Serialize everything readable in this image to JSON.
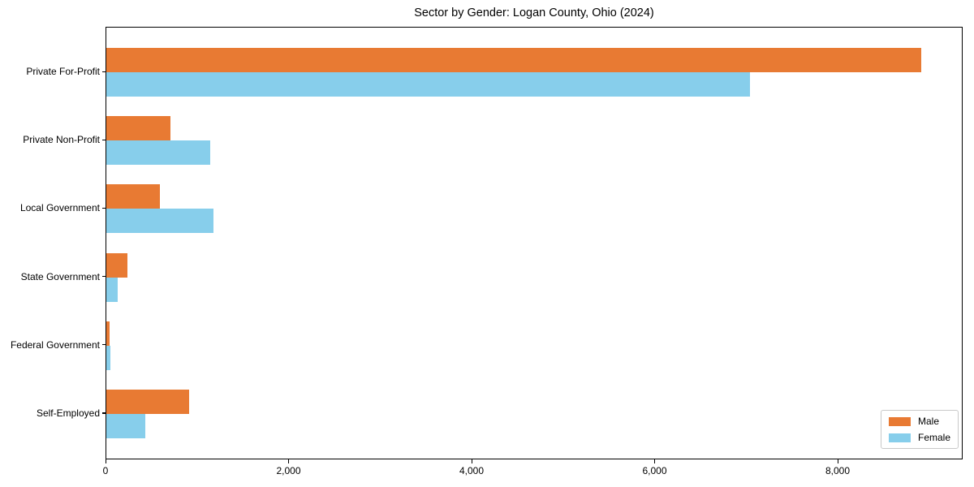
{
  "title": "Sector by Gender: Logan County, Ohio (2024)",
  "chart_data": {
    "type": "bar",
    "orientation": "horizontal",
    "title": "Sector by Gender: Logan County, Ohio (2024)",
    "categories": [
      "Private For-Profit",
      "Private Non-Profit",
      "Local Government",
      "State Government",
      "Federal Government",
      "Self-Employed"
    ],
    "series": [
      {
        "name": "Male",
        "color": "#e87a33",
        "values": [
          8920,
          700,
          585,
          230,
          35,
          910
        ]
      },
      {
        "name": "Female",
        "color": "#87ceeb",
        "values": [
          7050,
          1135,
          1175,
          125,
          40,
          430
        ]
      }
    ],
    "xlabel": "",
    "ylabel": "",
    "xlim": [
      0,
      9366
    ],
    "xticks": [
      0,
      2000,
      4000,
      6000,
      8000
    ],
    "xtick_labels": [
      "0",
      "2,000",
      "4,000",
      "6,000",
      "8,000"
    ],
    "grid": false,
    "legend_position": "lower right"
  },
  "colors": {
    "male": "#e87a33",
    "female": "#87ceeb",
    "axis": "#000000",
    "legend_border": "#c9c9c9",
    "background": "#ffffff"
  }
}
